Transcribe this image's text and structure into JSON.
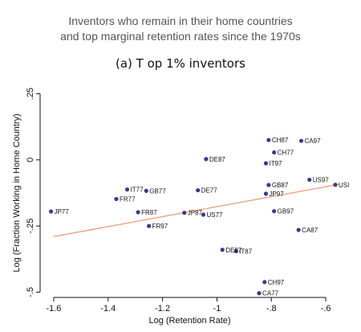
{
  "header": {
    "title_line1": "Inventors who remain in their home countries",
    "title_line2": "and top marginal retention rates since the 1970s",
    "subtitle": "(a) T op 1% inventors"
  },
  "chart_data": {
    "type": "scatter",
    "xlabel": "Log (Retention Rate)",
    "ylabel": "Log (Fraction Working in Home Country)",
    "xlim": [
      -1.65,
      -0.5
    ],
    "ylim": [
      -0.52,
      0.27
    ],
    "x_ticks": [
      {
        "value": -1.6,
        "label": "-1.6"
      },
      {
        "value": -1.4,
        "label": "-1.4"
      },
      {
        "value": -1.2,
        "label": "-1.2"
      },
      {
        "value": -1.0,
        "label": "-1"
      },
      {
        "value": -0.8,
        "label": "-.8"
      },
      {
        "value": -0.6,
        "label": "-.6"
      }
    ],
    "y_ticks": [
      {
        "value": 0.25,
        "label": ".25"
      },
      {
        "value": 0,
        "label": "0"
      },
      {
        "value": -0.25,
        "label": "-.25"
      },
      {
        "value": -0.5,
        "label": "-.5"
      }
    ],
    "fit_line": {
      "x": [
        -1.6,
        -0.55
      ],
      "y": [
        -0.29,
        -0.092
      ],
      "color": "#f0a080"
    },
    "point_color": "#3a3a8c",
    "points": [
      {
        "label": "JP77",
        "x": -1.61,
        "y": -0.195
      },
      {
        "label": "FR77",
        "x": -1.37,
        "y": -0.148
      },
      {
        "label": "IT77",
        "x": -1.33,
        "y": -0.112
      },
      {
        "label": "GB77",
        "x": -1.26,
        "y": -0.117
      },
      {
        "label": "FR87",
        "x": -1.29,
        "y": -0.198
      },
      {
        "label": "FR97",
        "x": -1.25,
        "y": -0.25
      },
      {
        "label": "JP87",
        "x": -1.12,
        "y": -0.2
      },
      {
        "label": "US77",
        "x": -1.05,
        "y": -0.207
      },
      {
        "label": "DE77",
        "x": -1.07,
        "y": -0.115
      },
      {
        "label": "DE87",
        "x": -1.04,
        "y": 0.003
      },
      {
        "label": "DE97",
        "x": -0.98,
        "y": -0.34
      },
      {
        "label": "IT87",
        "x": -0.93,
        "y": -0.345
      },
      {
        "label": "CH87",
        "x": -0.81,
        "y": 0.075
      },
      {
        "label": "CH77",
        "x": -0.79,
        "y": 0.028
      },
      {
        "label": "IT97",
        "x": -0.82,
        "y": -0.013
      },
      {
        "label": "GB87",
        "x": -0.81,
        "y": -0.095
      },
      {
        "label": "JP97",
        "x": -0.82,
        "y": -0.128
      },
      {
        "label": "GB97",
        "x": -0.79,
        "y": -0.194
      },
      {
        "label": "CA87",
        "x": -0.7,
        "y": -0.265
      },
      {
        "label": "CA97",
        "x": -0.69,
        "y": 0.072
      },
      {
        "label": "US97",
        "x": -0.66,
        "y": -0.075
      },
      {
        "label": "USI",
        "x": -0.565,
        "y": -0.094
      },
      {
        "label": "CH97",
        "x": -0.825,
        "y": -0.462
      },
      {
        "label": "CA77",
        "x": -0.845,
        "y": -0.504
      }
    ]
  }
}
